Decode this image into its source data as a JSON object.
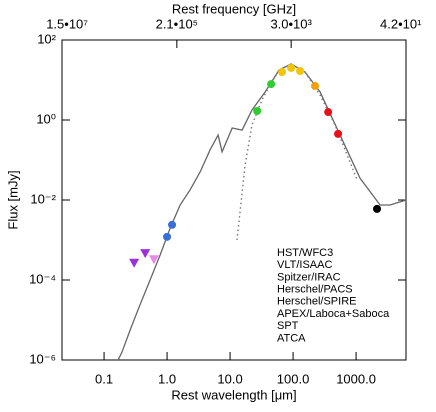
{
  "chart_data": {
    "type": "scatter",
    "xlabel": "Rest wavelength [μm]",
    "ylabel": "Flux [mJy]",
    "x2label": "Rest frequency [GHz]",
    "xscale": "log",
    "yscale": "log",
    "x2scale": "log",
    "xlim": [
      0.0215,
      6200
    ],
    "ylim": [
      1e-06,
      100
    ],
    "x2lim": [
      15000000,
      42
    ],
    "xticks": [
      0.1,
      {
        "value": 1,
        "label": "1.0"
      },
      {
        "value": 10,
        "label": "10.0"
      },
      {
        "value": 100,
        "label": "100.0"
      },
      {
        "value": 1000,
        "label": "1000.0"
      }
    ],
    "yticks": [
      {
        "value": 1e-06,
        "label": "10⁻⁶"
      },
      {
        "value": 0.0001,
        "label": "10⁻⁴"
      },
      {
        "value": 0.01,
        "label": "10⁻²"
      },
      {
        "value": 1,
        "label": "10⁰"
      },
      {
        "value": 100,
        "label": "10²"
      }
    ],
    "x2ticks": [
      {
        "value": 15000000,
        "label": "1.5•10⁷"
      },
      {
        "value": 210000,
        "label": "2.1•10⁵"
      },
      {
        "value": 3000,
        "label": "3.0•10³"
      },
      {
        "value": 42,
        "label": "4.2•10¹"
      }
    ],
    "lines": [
      {
        "color": "#666666",
        "dash": "solid",
        "x": [
          0.167,
          0.193,
          0.259,
          0.372,
          0.537,
          0.774,
          1.12,
          1.61,
          2.32,
          3.34,
          4.82,
          6.45,
          7.47,
          10.8,
          15.5,
          22.3,
          36.0,
          60.0,
          92.9,
          155,
          269,
          557,
          1156,
          2404,
          3467,
          6223
        ],
        "y": [
          1e-06,
          1.6e-06,
          5.6e-06,
          2.4e-05,
          0.0001,
          0.00042,
          0.002,
          0.0075,
          0.018,
          0.05,
          0.18,
          0.42,
          0.16,
          0.63,
          0.56,
          1.78,
          5.0,
          17.8,
          25.1,
          15.8,
          5.0,
          0.42,
          0.035,
          0.0075,
          0.0075,
          0.01
        ]
      },
      {
        "color": "#777777",
        "dash": "dotted",
        "x": [
          12.9,
          17.3,
          22.3,
          32.2,
          43,
          60,
          93,
          155,
          269,
          464,
          1037
        ],
        "y": [
          0.001,
          0.075,
          0.75,
          3.2,
          7.5,
          17.8,
          25,
          15.8,
          4.2,
          0.75,
          0.032
        ]
      }
    ],
    "series": [
      {
        "name": "HST/WFC3",
        "color": "#9b30d9",
        "marker": "triangle",
        "x": [
          0.3,
          0.45
        ],
        "values": [
          0.00027,
          0.00047
        ]
      },
      {
        "name": "VLT/ISAAC",
        "color": "#e58be8",
        "marker": "triangle",
        "x": [
          0.62
        ],
        "values": [
          0.00033
        ]
      },
      {
        "name": "Spitzer/IRAC",
        "color": "#3a6fd8",
        "marker": "circle",
        "x": [
          1.0,
          1.2
        ],
        "values": [
          0.0012,
          0.0024
        ]
      },
      {
        "name": "Herschel/PACS",
        "color": "#2ecc2e",
        "marker": "circle",
        "x": [
          26.9,
          44.8
        ],
        "values": [
          1.68,
          7.9
        ]
      },
      {
        "name": "Herschel/SPIRE",
        "color": "#f5c400",
        "marker": "circle",
        "x": [
          66.8,
          93,
          129
        ],
        "values": [
          15.8,
          20,
          16.8
        ]
      },
      {
        "name": "APEX/Laboca+Saboca",
        "color": "#f5a000",
        "marker": "circle",
        "x": [
          223
        ],
        "values": [
          7.1
        ]
      },
      {
        "name": "SPT",
        "color": "#e8101a",
        "marker": "circle",
        "x": [
          360,
          518
        ],
        "values": [
          1.58,
          0.45
        ]
      },
      {
        "name": "ATCA",
        "color": "#000000",
        "marker": "circle",
        "x": [
          2150
        ],
        "values": [
          0.006
        ]
      }
    ]
  }
}
